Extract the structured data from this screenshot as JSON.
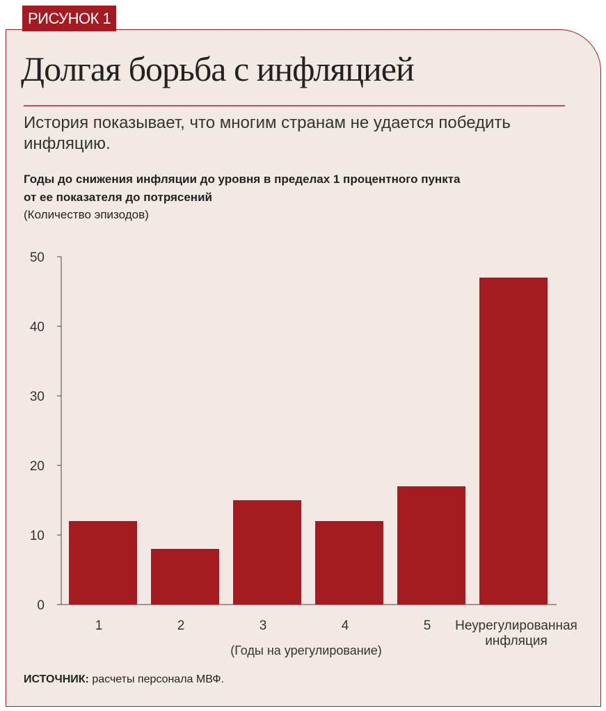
{
  "figure_label": "РИСУНОК 1",
  "title": "Долгая борьба с инфляцией",
  "subtitle": "История показывает, что многим странам не удается победить инфляцию.",
  "source_label": "ИСТОЧНИК:",
  "source_text": " расчеты персонала МВФ.",
  "colors": {
    "bar": "#a31b20",
    "background": "#f3e9e4"
  },
  "chart_data": {
    "type": "bar",
    "title": "Годы до снижения инфляции до уровня в пределах 1 процентного пункта от ее показателя до потрясений",
    "title_lines": [
      "Годы до снижения инфляции до уровня в пределах 1 процентного пункта",
      "от ее показателя до потрясений"
    ],
    "units": "(Количество эпизодов)",
    "categories": [
      [
        "1"
      ],
      [
        "2"
      ],
      [
        "3"
      ],
      [
        "4"
      ],
      [
        "5"
      ],
      [
        "Неурегулированная",
        "инфляция"
      ]
    ],
    "values": [
      12,
      8,
      15,
      12,
      17,
      47
    ],
    "xlabel": "(Годы на урегулирование)",
    "ylabel": "",
    "ylim": [
      0,
      50
    ],
    "yticks": [
      "0",
      "10",
      "20",
      "30",
      "40",
      "50"
    ],
    "grid": false
  }
}
